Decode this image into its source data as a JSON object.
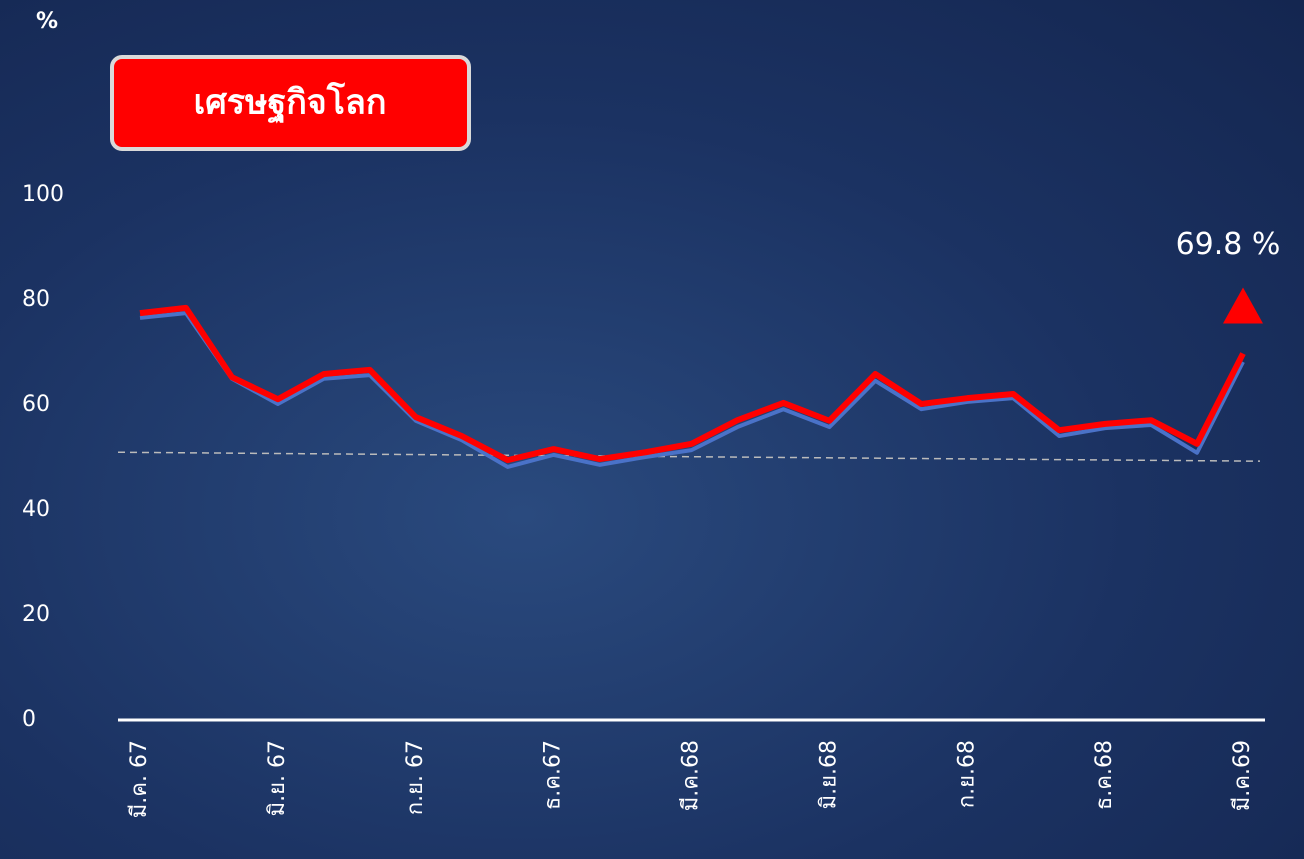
{
  "chart_data": {
    "type": "line",
    "title": "เศรษฐกิจโลก",
    "y_label": "%",
    "categories": [
      "มี.ค. 67",
      null,
      null,
      "มิ.ย. 67",
      null,
      null,
      "ก.ย. 67",
      null,
      null,
      "ธ.ค.67",
      null,
      null,
      "มี.ค.68",
      null,
      null,
      "มิ.ย.68",
      null,
      null,
      "ก.ย.68",
      null,
      null,
      "ธ.ค.68",
      null,
      null,
      "มี.ค.69"
    ],
    "series": [
      {
        "color": "#ff0000",
        "values": [
          77.5,
          78.5,
          65.3,
          61.1,
          65.9,
          66.7,
          57.7,
          54.1,
          49.5,
          51.6,
          49.7,
          51.0,
          52.6,
          57.1,
          60.4,
          57.0,
          65.9,
          60.2,
          61.3,
          62.1,
          55.2,
          56.4,
          57.1,
          52.6,
          69.8
        ],
        "value_labels": [
          null,
          null,
          null,
          null,
          null,
          null,
          null,
          null,
          null,
          null,
          null,
          null,
          null,
          null,
          null,
          null,
          null,
          null,
          null,
          null,
          null,
          null,
          null,
          null,
          "69.8 %"
        ]
      },
      {
        "color": "#4a72c8",
        "values": [
          76.6,
          77.5,
          65.0,
          60.2,
          65.0,
          65.7,
          57.0,
          53.3,
          48.2,
          50.5,
          48.6,
          50.1,
          51.4,
          55.8,
          59.2,
          55.8,
          64.6,
          59.2,
          60.6,
          61.3,
          54.1,
          55.6,
          56.2,
          50.9,
          68.2
        ]
      }
    ],
    "trend": [
      51.0,
      49.3
    ],
    "ylim": [
      0,
      100
    ],
    "yticks": [
      0,
      20,
      40,
      60,
      80,
      100
    ]
  }
}
